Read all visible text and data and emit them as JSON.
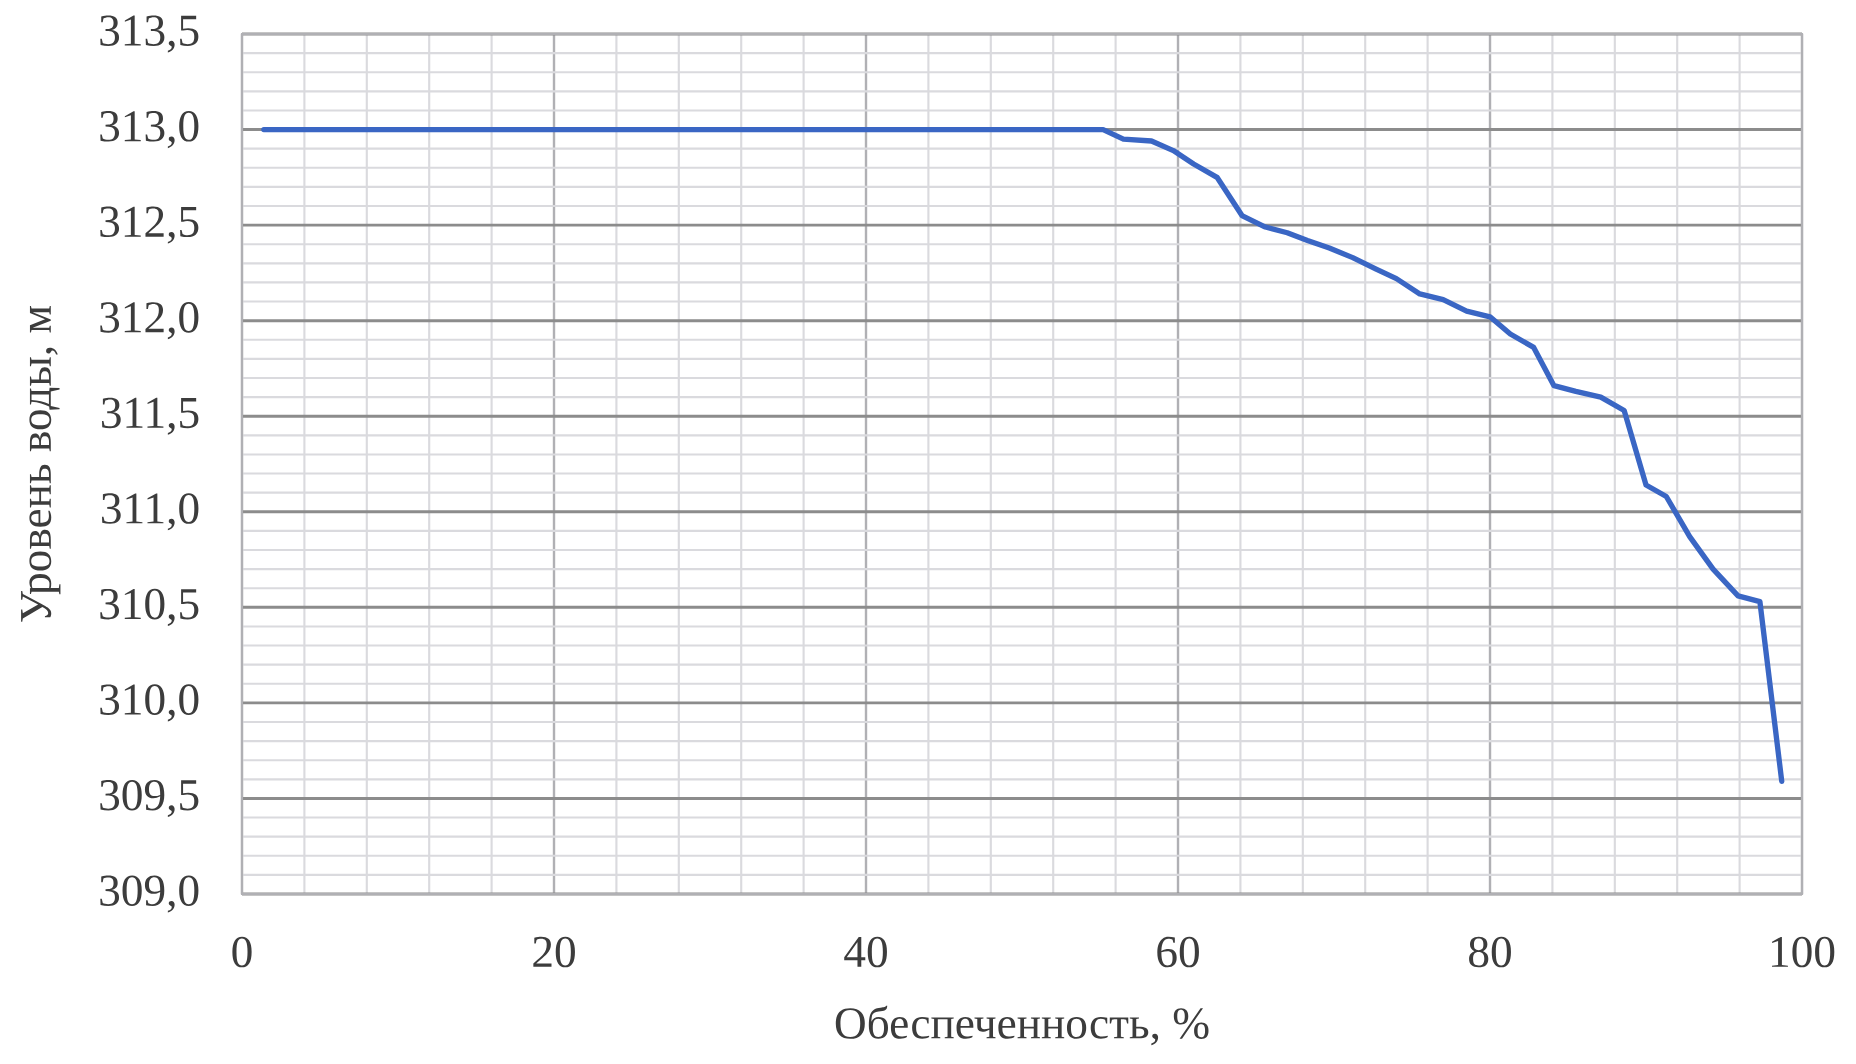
{
  "chart_data": {
    "type": "line",
    "xlabel": "Обеспеченность, %",
    "ylabel": "Уровень воды, м",
    "x": [
      1.4,
      55.2,
      56.5,
      58.3,
      59.7,
      61.0,
      62.5,
      64.1,
      65.6,
      67.0,
      68.3,
      69.7,
      71.2,
      72.7,
      74.0,
      75.5,
      77.0,
      78.5,
      80.0,
      81.3,
      82.8,
      84.1,
      85.5,
      87.1,
      88.6,
      90.0,
      91.3,
      92.8,
      94.3,
      95.9,
      97.3,
      98.7
    ],
    "values": [
      313.0,
      313.0,
      312.95,
      312.94,
      312.89,
      312.82,
      312.75,
      312.55,
      312.49,
      312.46,
      312.42,
      312.38,
      312.33,
      312.27,
      312.22,
      312.14,
      312.11,
      312.05,
      312.02,
      311.93,
      311.86,
      311.66,
      311.63,
      311.6,
      311.53,
      311.14,
      311.08,
      310.87,
      310.7,
      310.56,
      310.53,
      309.59
    ],
    "color": "#3a66c4",
    "xlim": [
      0,
      100
    ],
    "ylim": [
      309,
      313.5
    ],
    "xticks": [
      0,
      20,
      40,
      60,
      80,
      100
    ],
    "yticks": [
      {
        "value": 309,
        "label": "309,0"
      },
      {
        "value": 309.5,
        "label": "309,5"
      },
      {
        "value": 310,
        "label": "310,0"
      },
      {
        "value": 310.5,
        "label": "310,5"
      },
      {
        "value": 311,
        "label": "311,0"
      },
      {
        "value": 311.5,
        "label": "311,5"
      },
      {
        "value": 312,
        "label": "312,0"
      },
      {
        "value": 312.5,
        "label": "312,5"
      },
      {
        "value": 313,
        "label": "313,0"
      },
      {
        "value": 313.5,
        "label": "313,5"
      }
    ],
    "grid": true,
    "marker": "none",
    "line_style": "solid"
  }
}
